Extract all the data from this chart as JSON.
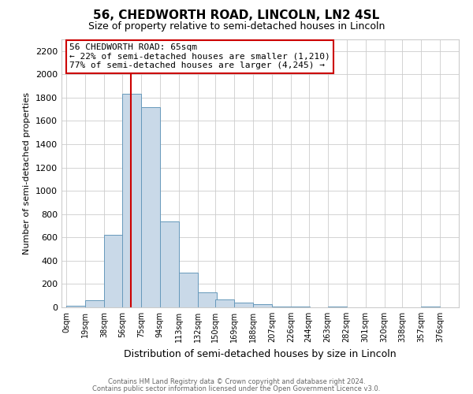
{
  "title": "56, CHEDWORTH ROAD, LINCOLN, LN2 4SL",
  "subtitle": "Size of property relative to semi-detached houses in Lincoln",
  "xlabel": "Distribution of semi-detached houses by size in Lincoln",
  "ylabel": "Number of semi-detached properties",
  "bar_left_edges": [
    0,
    19,
    38,
    56,
    75,
    94,
    113,
    132,
    150,
    169,
    188,
    207,
    226,
    244,
    263,
    282,
    301,
    320,
    338,
    357
  ],
  "bar_heights": [
    15,
    60,
    625,
    1830,
    1720,
    740,
    300,
    130,
    65,
    40,
    25,
    10,
    5,
    0,
    5,
    0,
    0,
    0,
    0,
    5
  ],
  "bin_width": 19,
  "bar_color": "#c9d9e8",
  "bar_edge_color": "#6699bb",
  "property_line_x": 65,
  "property_line_color": "#cc0000",
  "annotation_title": "56 CHEDWORTH ROAD: 65sqm",
  "annotation_line1": "← 22% of semi-detached houses are smaller (1,210)",
  "annotation_line2": "77% of semi-detached houses are larger (4,245) →",
  "annotation_box_color": "#ffffff",
  "annotation_box_edge": "#cc0000",
  "yticks": [
    0,
    200,
    400,
    600,
    800,
    1000,
    1200,
    1400,
    1600,
    1800,
    2000,
    2200
  ],
  "xtick_labels": [
    "0sqm",
    "19sqm",
    "38sqm",
    "56sqm",
    "75sqm",
    "94sqm",
    "113sqm",
    "132sqm",
    "150sqm",
    "169sqm",
    "188sqm",
    "207sqm",
    "226sqm",
    "244sqm",
    "263sqm",
    "282sqm",
    "301sqm",
    "320sqm",
    "338sqm",
    "357sqm",
    "376sqm"
  ],
  "xtick_positions": [
    0,
    19,
    38,
    56,
    75,
    94,
    113,
    132,
    150,
    169,
    188,
    207,
    226,
    244,
    263,
    282,
    301,
    320,
    338,
    357,
    376
  ],
  "ylim": [
    0,
    2300
  ],
  "xlim": [
    -5,
    395
  ],
  "grid_color": "#cccccc",
  "background_color": "#ffffff",
  "footer_line1": "Contains HM Land Registry data © Crown copyright and database right 2024.",
  "footer_line2": "Contains public sector information licensed under the Open Government Licence v3.0."
}
